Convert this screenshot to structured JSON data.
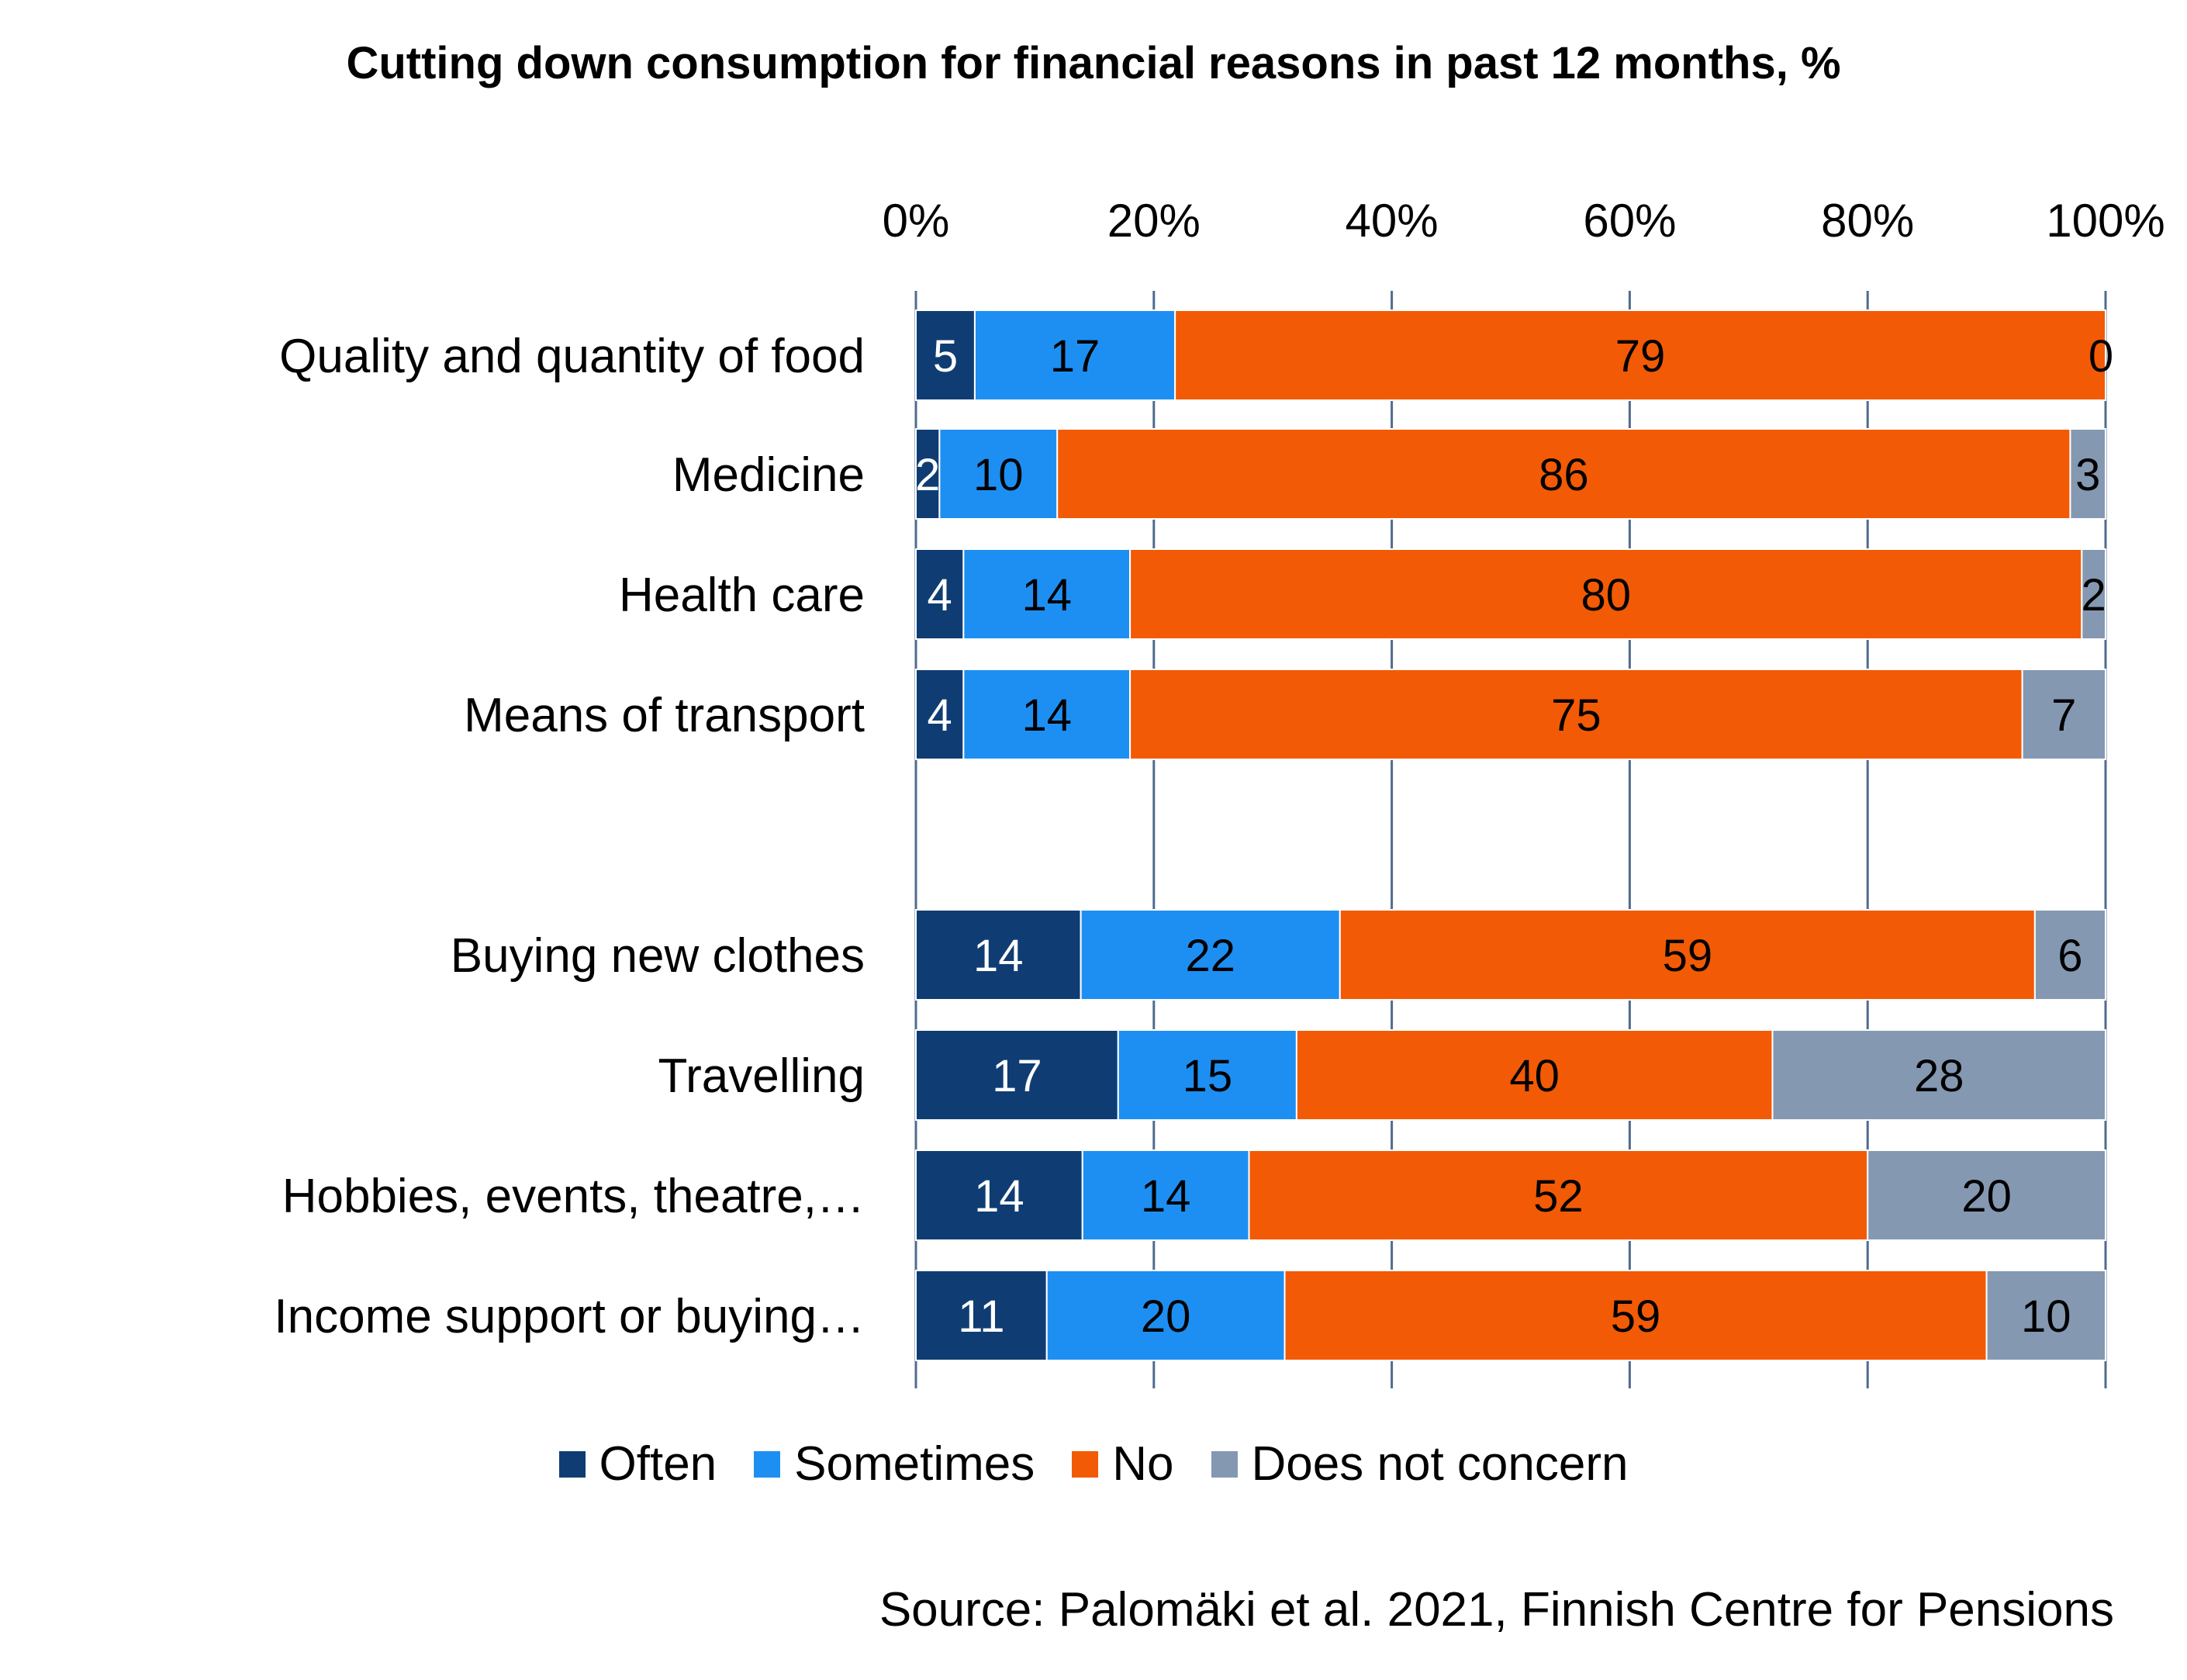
{
  "chart_data": {
    "type": "bar",
    "orientation": "horizontal",
    "stacked": "percent",
    "title": "Cutting down consumption for financial reasons in past 12 months, %",
    "xlim": [
      0,
      100
    ],
    "x_ticks": [
      "0%",
      "20%",
      "40%",
      "60%",
      "80%",
      "100%"
    ],
    "grid": true,
    "legend_position": "bottom",
    "categories": [
      "Quality and quantity of food",
      "Medicine",
      "Health care",
      "Means of transport",
      "Buying new clothes",
      "Travelling",
      "Hobbies, events, theatre,…",
      "Income support or buying…"
    ],
    "series": [
      {
        "name": "Often",
        "color": "#0f3d73",
        "label_color": "#ffffff",
        "values": [
          5,
          2,
          4,
          4,
          14,
          17,
          14,
          11
        ]
      },
      {
        "name": "Sometimes",
        "color": "#1e8ff2",
        "label_color": "#000000",
        "values": [
          17,
          10,
          14,
          14,
          22,
          15,
          14,
          20
        ]
      },
      {
        "name": "No",
        "color": "#f25a05",
        "label_color": "#000000",
        "values": [
          79,
          86,
          80,
          75,
          59,
          40,
          52,
          59
        ]
      },
      {
        "name": "Does not concern",
        "color": "#8498b2",
        "label_color": "#000000",
        "values": [
          0,
          3,
          2,
          7,
          6,
          28,
          20,
          10
        ]
      }
    ]
  },
  "source_note": "Source: Palomäki et al. 2021, Finnish Centre for Pensions"
}
